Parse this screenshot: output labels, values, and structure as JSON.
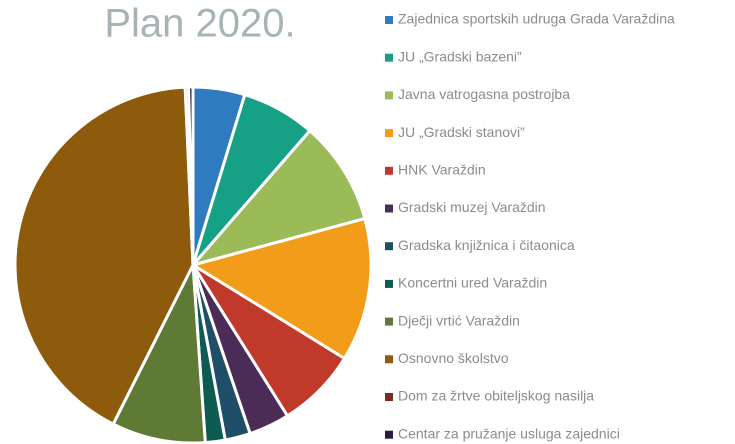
{
  "chart_data": {
    "type": "pie",
    "title": "Plan 2020.",
    "categories": [
      "Zajednica sportskih udruga Grada Varaždina",
      "JU „Gradski bazeni”",
      "Javna vatrogasna postrojba",
      "JU „Gradski stanovi”",
      "HNK Varaždin",
      "Gradski muzej Varaždin",
      "Gradska knjižnica i čitaonica",
      "Koncertni ured Varaždin",
      "Dječji vrtić Varaždin",
      "Osnovno školstvo",
      "Dom za žrtve obiteljskog nasilja",
      "Centar za pružanje usluga zajednici"
    ],
    "values": [
      4.7,
      6.7,
      9.4,
      13,
      7.3,
      3.7,
      2.3,
      1.8,
      8.5,
      41.9,
      0.3,
      0.4
    ],
    "colors": [
      "#2e7bbf",
      "#16a086",
      "#9bbb59",
      "#f39c1a",
      "#c0392b",
      "#4b2c56",
      "#1f4e69",
      "#0e5b52",
      "#5e7a34",
      "#8e5b0c",
      "#7a2b22",
      "#2a1c3a"
    ],
    "legend": "right"
  }
}
